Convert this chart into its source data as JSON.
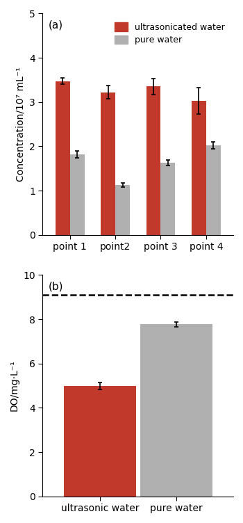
{
  "panel_a": {
    "categories": [
      "point 1",
      "point2",
      "point 3",
      "point 4"
    ],
    "ultrasonic_values": [
      3.47,
      3.22,
      3.35,
      3.03
    ],
    "ultrasonic_errors": [
      0.07,
      0.15,
      0.18,
      0.3
    ],
    "pure_values": [
      1.82,
      1.13,
      1.63,
      2.02
    ],
    "pure_errors": [
      0.08,
      0.05,
      0.06,
      0.08
    ],
    "ylabel": "Concentration/10⁷ mL⁻¹",
    "ylim": [
      0,
      5
    ],
    "yticks": [
      0,
      1,
      2,
      3,
      4,
      5
    ],
    "label": "(a)",
    "ultrasonic_color": "#c0392b",
    "pure_color": "#b0b0b0",
    "bar_width": 0.32,
    "legend_labels": [
      "ultrasonicated water",
      "pure water"
    ]
  },
  "panel_b": {
    "categories": [
      "ultrasonic water",
      "pure water"
    ],
    "values": [
      4.98,
      7.77
    ],
    "errors": [
      0.15,
      0.12
    ],
    "dashed_line_y": 9.1,
    "ylabel": "DO/mg·L⁻¹",
    "ylim": [
      0,
      10
    ],
    "yticks": [
      0,
      2,
      4,
      6,
      8,
      10
    ],
    "label": "(b)",
    "ultrasonic_color": "#c0392b",
    "pure_color": "#b0b0b0",
    "bar_width": 0.38,
    "bar_positions": [
      0.3,
      0.7
    ],
    "xlim": [
      0.0,
      1.0
    ]
  },
  "figsize": [
    3.5,
    7.52
  ],
  "dpi": 100
}
